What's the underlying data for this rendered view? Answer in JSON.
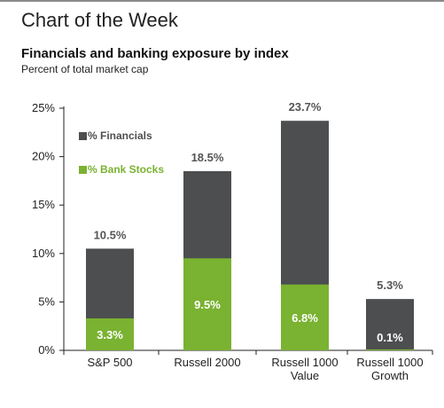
{
  "page": {
    "heading": "Chart of the Week"
  },
  "chart_data": {
    "type": "bar",
    "stacked": "overlay",
    "title": "Financials and banking exposure by index",
    "subtitle": "Percent of total market cap",
    "categories": [
      [
        "S&P 500"
      ],
      [
        "Russell 2000"
      ],
      [
        "Russell 1000",
        "Value"
      ],
      [
        "Russell 1000",
        "Growth"
      ]
    ],
    "series": [
      {
        "name": "% Financials",
        "values": [
          10.5,
          18.5,
          23.7,
          5.3
        ],
        "color": "#4d4e50",
        "labels": [
          "10.5%",
          "18.5%",
          "23.7%",
          "5.3%"
        ]
      },
      {
        "name": "% Bank Stocks",
        "values": [
          3.3,
          9.5,
          6.8,
          0.1
        ],
        "color": "#7ab231",
        "labels": [
          "3.3%",
          "9.5%",
          "6.8%",
          "0.1%"
        ]
      }
    ],
    "ylim": [
      0,
      25
    ],
    "yticks": [
      0,
      5,
      10,
      15,
      20,
      25
    ],
    "ytick_labels": [
      "0%",
      "5%",
      "10%",
      "15%",
      "20%",
      "25%"
    ],
    "grid": false,
    "legend_position": "top-left"
  }
}
